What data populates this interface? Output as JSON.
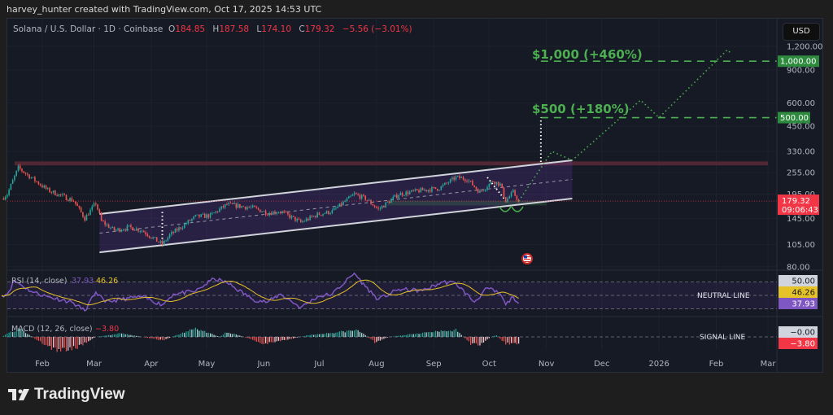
{
  "header": {
    "attribution": "harvey_hunter created with TradingView.com, Oct 17, 2025 14:53 UTC"
  },
  "legend": {
    "symbol": "Solana / U.S. Dollar · 1D · Coinbase",
    "o_label": "O",
    "o": "184.85",
    "h_label": "H",
    "h": "187.58",
    "l_label": "L",
    "l": "174.10",
    "c_label": "C",
    "c": "179.32",
    "change": "−5.56 (−3.01%)"
  },
  "currency_button": "USD",
  "footer": {
    "logo": "TradingView"
  },
  "colors": {
    "up": "#26a69a",
    "down": "#ef5350",
    "target": "#4caf50",
    "channel": "#d1d4dc",
    "rsi": "#7e57c2",
    "rsi_ma": "#e6c229",
    "resistance": "#5a2a36",
    "last_price": "#f23645"
  },
  "chart_data": [
    {
      "type": "candlestick",
      "title": "Solana / U.S. Dollar · 1D · Coinbase",
      "y_scale": "log",
      "ylim": [
        80,
        1500
      ],
      "grid": true,
      "y_ticks": [
        {
          "value": 1200,
          "label": "1,200.00"
        },
        {
          "value": 900,
          "label": "900.00"
        },
        {
          "value": 600,
          "label": "600.00"
        },
        {
          "value": 450,
          "label": "450.00"
        },
        {
          "value": 330,
          "label": "330.00"
        },
        {
          "value": 255,
          "label": "255.00"
        },
        {
          "value": 195,
          "label": "195.00"
        },
        {
          "value": 145,
          "label": "145.00"
        },
        {
          "value": 105,
          "label": "105.00"
        },
        {
          "value": 80,
          "label": "80.00"
        }
      ],
      "x_ticks": [
        {
          "label": "Feb",
          "date": "2025-02-01"
        },
        {
          "label": "Mar",
          "date": "2025-03-01"
        },
        {
          "label": "Apr",
          "date": "2025-04-01"
        },
        {
          "label": "May",
          "date": "2025-05-01"
        },
        {
          "label": "Jun",
          "date": "2025-06-01"
        },
        {
          "label": "Jul",
          "date": "2025-07-01"
        },
        {
          "label": "Aug",
          "date": "2025-08-01"
        },
        {
          "label": "Sep",
          "date": "2025-09-01"
        },
        {
          "label": "Oct",
          "date": "2025-10-01"
        },
        {
          "label": "Nov",
          "date": "2025-11-01"
        },
        {
          "label": "Dec",
          "date": "2025-12-01"
        },
        {
          "label": "2026",
          "date": "2026-01-01"
        },
        {
          "label": "Feb",
          "date": "2026-02-01"
        },
        {
          "label": "Mar",
          "date": "2026-03-01"
        }
      ],
      "closes": [
        {
          "date": "2025-01-10",
          "close": 185
        },
        {
          "date": "2025-01-13",
          "close": 195
        },
        {
          "date": "2025-01-19",
          "close": 270
        },
        {
          "date": "2025-01-27",
          "close": 235
        },
        {
          "date": "2025-02-04",
          "close": 205
        },
        {
          "date": "2025-02-18",
          "close": 180
        },
        {
          "date": "2025-02-24",
          "close": 145
        },
        {
          "date": "2025-03-02",
          "close": 175
        },
        {
          "date": "2025-03-05",
          "close": 140
        },
        {
          "date": "2025-03-12",
          "close": 125
        },
        {
          "date": "2025-03-20",
          "close": 130
        },
        {
          "date": "2025-03-27",
          "close": 125
        },
        {
          "date": "2025-04-07",
          "close": 105
        },
        {
          "date": "2025-04-11",
          "close": 118
        },
        {
          "date": "2025-04-25",
          "close": 148
        },
        {
          "date": "2025-05-03",
          "close": 150
        },
        {
          "date": "2025-05-12",
          "close": 172
        },
        {
          "date": "2025-05-26",
          "close": 165
        },
        {
          "date": "2025-06-03",
          "close": 155
        },
        {
          "date": "2025-06-10",
          "close": 158
        },
        {
          "date": "2025-06-21",
          "close": 138
        },
        {
          "date": "2025-06-30",
          "close": 152
        },
        {
          "date": "2025-07-08",
          "close": 158
        },
        {
          "date": "2025-07-20",
          "close": 195
        },
        {
          "date": "2025-07-26",
          "close": 185
        },
        {
          "date": "2025-08-02",
          "close": 162
        },
        {
          "date": "2025-08-13",
          "close": 195
        },
        {
          "date": "2025-08-26",
          "close": 205
        },
        {
          "date": "2025-09-04",
          "close": 210
        },
        {
          "date": "2025-09-13",
          "close": 240
        },
        {
          "date": "2025-09-19",
          "close": 235
        },
        {
          "date": "2025-09-26",
          "close": 200
        },
        {
          "date": "2025-10-03",
          "close": 230
        },
        {
          "date": "2025-10-07",
          "close": 220
        },
        {
          "date": "2025-10-10",
          "close": 180
        },
        {
          "date": "2025-10-14",
          "close": 200
        },
        {
          "date": "2025-10-17",
          "close": 179.32
        }
      ],
      "last_price": {
        "value": 179.32,
        "label": "179.32",
        "countdown": "09:06:43"
      },
      "channel": {
        "start": {
          "date": "2025-03-04",
          "upper": 153,
          "lower": 95.5
        },
        "end": {
          "date": "2025-11-15",
          "upper": 296,
          "lower": 185
        }
      },
      "resistance_band": {
        "from": "2025-01-17",
        "to": "2026-03-01",
        "low": 278,
        "high": 292
      },
      "support_zone": {
        "from": "2025-08-07",
        "to": "2025-11-01",
        "low": 170,
        "high": 180
      },
      "targets": [
        {
          "price": 500,
          "label": "$500 (+180%)",
          "axis_label": "500.00",
          "from": "2025-10-29"
        },
        {
          "price": 1000,
          "label": "$1,000 (+460%)",
          "axis_label": "1,000.00",
          "from": "2025-10-29"
        }
      ],
      "measure_lines": [
        [
          {
            "date": "2025-10-29",
            "price": 290
          },
          {
            "date": "2025-10-29",
            "price": 500
          }
        ],
        [
          {
            "date": "2025-04-07",
            "price": 103
          },
          {
            "date": "2025-04-07",
            "price": 161
          }
        ],
        [
          {
            "date": "2025-09-30",
            "price": 240
          },
          {
            "date": "2025-10-10",
            "price": 180
          }
        ]
      ],
      "projection": [
        {
          "date": "2025-10-17",
          "price": 179
        },
        {
          "date": "2025-11-04",
          "price": 330
        },
        {
          "date": "2025-11-15",
          "price": 296
        },
        {
          "date": "2025-12-22",
          "price": 620
        },
        {
          "date": "2026-01-01",
          "price": 500
        },
        {
          "date": "2026-02-07",
          "price": 1150
        },
        {
          "date": "2026-02-09",
          "price": 1100
        }
      ]
    },
    {
      "type": "line",
      "title": "RSI (14, close)",
      "rsi_value": "37.93",
      "ma_value": "46.26",
      "levels": [
        70,
        50,
        30
      ],
      "axis_labels": [
        "50.00",
        "46.26",
        "37.93"
      ],
      "annotation": "NEUTRAL LINE",
      "points": [
        {
          "date": "2025-01-10",
          "v": 50
        },
        {
          "date": "2025-01-13",
          "v": 52
        },
        {
          "date": "2025-01-17",
          "v": 72
        },
        {
          "date": "2025-01-26",
          "v": 56
        },
        {
          "date": "2025-02-04",
          "v": 48
        },
        {
          "date": "2025-02-17",
          "v": 40
        },
        {
          "date": "2025-02-24",
          "v": 27
        },
        {
          "date": "2025-03-02",
          "v": 55
        },
        {
          "date": "2025-03-07",
          "v": 40
        },
        {
          "date": "2025-03-20",
          "v": 46
        },
        {
          "date": "2025-03-27",
          "v": 48
        },
        {
          "date": "2025-04-07",
          "v": 36
        },
        {
          "date": "2025-04-13",
          "v": 52
        },
        {
          "date": "2025-04-25",
          "v": 56
        },
        {
          "date": "2025-05-05",
          "v": 75
        },
        {
          "date": "2025-05-12",
          "v": 69
        },
        {
          "date": "2025-05-26",
          "v": 44
        },
        {
          "date": "2025-06-03",
          "v": 40
        },
        {
          "date": "2025-06-10",
          "v": 52
        },
        {
          "date": "2025-06-21",
          "v": 32
        },
        {
          "date": "2025-06-30",
          "v": 48
        },
        {
          "date": "2025-07-08",
          "v": 52
        },
        {
          "date": "2025-07-20",
          "v": 83
        },
        {
          "date": "2025-07-26",
          "v": 63
        },
        {
          "date": "2025-08-02",
          "v": 44
        },
        {
          "date": "2025-08-13",
          "v": 59
        },
        {
          "date": "2025-08-26",
          "v": 57
        },
        {
          "date": "2025-09-06",
          "v": 70
        },
        {
          "date": "2025-09-13",
          "v": 68
        },
        {
          "date": "2025-09-23",
          "v": 40
        },
        {
          "date": "2025-09-30",
          "v": 61
        },
        {
          "date": "2025-10-07",
          "v": 52
        },
        {
          "date": "2025-10-10",
          "v": 36
        },
        {
          "date": "2025-10-14",
          "v": 48
        },
        {
          "date": "2025-10-17",
          "v": 37.93
        }
      ]
    },
    {
      "type": "bar",
      "title": "MACD (12, 26, close)",
      "value": "−3.80",
      "axis_labels": [
        "−0.00",
        "−3.80"
      ],
      "annotation": "SIGNAL LINE",
      "histogram": [
        {
          "date": "2025-01-10",
          "v": 0
        },
        {
          "date": "2025-01-13",
          "v": 2
        },
        {
          "date": "2025-01-20",
          "v": 5
        },
        {
          "date": "2025-01-29",
          "v": -2
        },
        {
          "date": "2025-02-09",
          "v": -8
        },
        {
          "date": "2025-02-20",
          "v": -6
        },
        {
          "date": "2025-03-02",
          "v": 0
        },
        {
          "date": "2025-03-16",
          "v": 2
        },
        {
          "date": "2025-03-27",
          "v": 0
        },
        {
          "date": "2025-04-07",
          "v": -2
        },
        {
          "date": "2025-04-25",
          "v": 5
        },
        {
          "date": "2025-05-08",
          "v": 0
        },
        {
          "date": "2025-05-12",
          "v": 3
        },
        {
          "date": "2025-05-21",
          "v": 0
        },
        {
          "date": "2025-06-01",
          "v": -4
        },
        {
          "date": "2025-06-16",
          "v": -1
        },
        {
          "date": "2025-06-25",
          "v": 1
        },
        {
          "date": "2025-07-22",
          "v": 4
        },
        {
          "date": "2025-07-31",
          "v": -3
        },
        {
          "date": "2025-08-08",
          "v": 0
        },
        {
          "date": "2025-08-22",
          "v": 2
        },
        {
          "date": "2025-09-13",
          "v": 4
        },
        {
          "date": "2025-09-21",
          "v": -4
        },
        {
          "date": "2025-09-26",
          "v": -5
        },
        {
          "date": "2025-10-02",
          "v": 0
        },
        {
          "date": "2025-10-05",
          "v": 1
        },
        {
          "date": "2025-10-10",
          "v": -4
        },
        {
          "date": "2025-10-17",
          "v": -3.8
        }
      ]
    }
  ]
}
